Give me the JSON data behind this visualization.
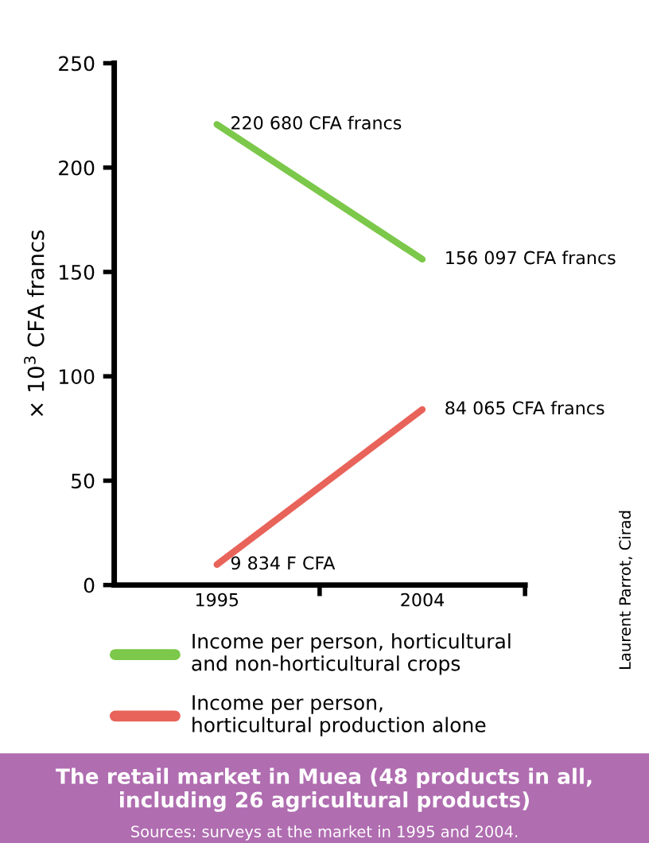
{
  "chart_data": {
    "type": "line",
    "title": "The retail market in Muea (48 products in all, including 26 agricultural products)",
    "subtitle": "Sources: surveys at the market in 1995 and 2004.",
    "ylabel": "× 10$^{3}$ CFA francs",
    "categories": [
      "1995",
      "2004"
    ],
    "series": [
      {
        "name": "Income per person, horticultural\nand non-horticultural crops",
        "color": "#7cc84a",
        "values": [
          220.7,
          156.1
        ]
      },
      {
        "name": "Income per person,\nhorticultural production alone",
        "color": "#e8635a",
        "values": [
          9.8,
          84.1
        ]
      }
    ],
    "ylim": [
      0,
      250
    ],
    "yticks": [
      0,
      50,
      100,
      150,
      200,
      250
    ],
    "grid": false,
    "legend": "bottom",
    "marker": "none",
    "line_style": "solid",
    "annotations": [
      {
        "text": "220 680 CFA francs",
        "x": "1995",
        "y": 220.7
      },
      {
        "text": "156 097 CFA francs",
        "x": "2004",
        "y": 156.1
      },
      {
        "text": "9 834 F CFA",
        "x": "1995",
        "y": 9.8
      },
      {
        "text": "84 065 CFA francs",
        "x": "2004",
        "y": 84.1
      },
      "Laurent Parrot, Cirad"
    ]
  }
}
